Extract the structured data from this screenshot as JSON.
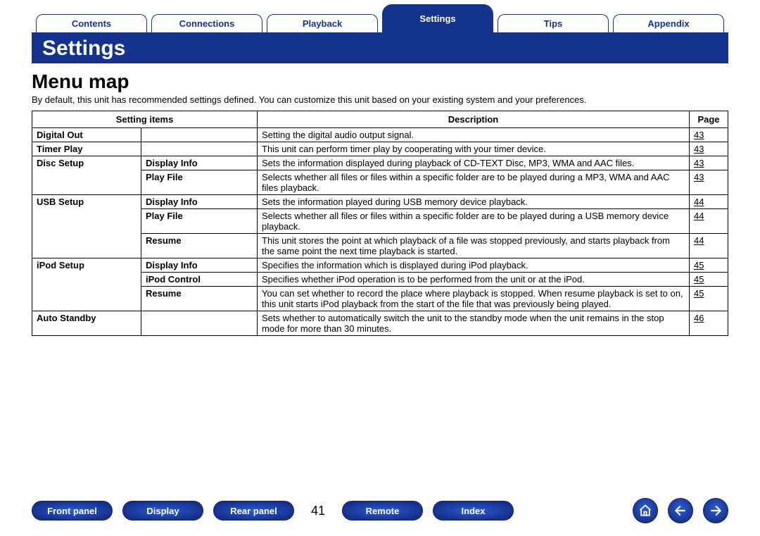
{
  "tabs": {
    "items": [
      {
        "label": "Contents",
        "active": false
      },
      {
        "label": "Connections",
        "active": false
      },
      {
        "label": "Playback",
        "active": false
      },
      {
        "label": "Settings",
        "active": true
      },
      {
        "label": "Tips",
        "active": false
      },
      {
        "label": "Appendix",
        "active": false
      }
    ]
  },
  "section_title": "Settings",
  "page_heading": "Menu map",
  "intro_text": "By default, this unit has recommended settings defined. You can customize this unit based on your existing system and your preferences.",
  "table": {
    "headers": {
      "items": "Setting items",
      "description": "Description",
      "page": "Page"
    },
    "rows": [
      {
        "item": "Digital Out",
        "sub": "",
        "desc": "Setting the digital audio output signal.",
        "page": "43",
        "newgroup": true
      },
      {
        "item": "Timer Play",
        "sub": "",
        "desc": "This unit can perform timer play by cooperating with your timer device.",
        "page": "43",
        "newgroup": true
      },
      {
        "item": "Disc Setup",
        "sub": "Display Info",
        "desc": "Sets the information displayed during playback of CD-TEXT Disc, MP3, WMA and AAC files.",
        "page": "43",
        "newgroup": true
      },
      {
        "item": "",
        "sub": "Play File",
        "desc": "Selects whether all files or files within a specific folder are to be played during a MP3, WMA and AAC files playback.",
        "page": "43",
        "newgroup": false
      },
      {
        "item": "USB Setup",
        "sub": "Display Info",
        "desc": "Sets the information played during USB memory device playback.",
        "page": "44",
        "newgroup": true
      },
      {
        "item": "",
        "sub": "Play File",
        "desc": "Selects whether all files or files within a specific folder are to be played during a USB memory device playback.",
        "page": "44",
        "newgroup": false
      },
      {
        "item": "",
        "sub": "Resume",
        "desc": "This unit stores the point at which playback of a file was stopped previously, and starts playback from the same point the next time playback is started.",
        "page": "44",
        "newgroup": false
      },
      {
        "item": "iPod Setup",
        "sub": "Display Info",
        "desc": "Specifies the information which is displayed during iPod playback.",
        "page": "45",
        "newgroup": true
      },
      {
        "item": "",
        "sub": "iPod Control",
        "desc": "Specifies whether iPod operation is to be performed from the unit or at the iPod.",
        "page": "45",
        "newgroup": false
      },
      {
        "item": "",
        "sub": "Resume",
        "desc": "You can set whether to record the place where playback is stopped. When resume playback is set to on, this unit starts iPod playback from the start of the file that was previously being played.",
        "page": "45",
        "newgroup": false
      },
      {
        "item": "Auto Standby",
        "sub": "",
        "desc": "Sets whether to automatically switch the unit to the standby mode when the unit remains in the stop mode for more than 30 minutes.",
        "page": "46",
        "newgroup": true,
        "justify": true
      }
    ]
  },
  "footer": {
    "buttons": {
      "front_panel": "Front panel",
      "display": "Display",
      "rear_panel": "Rear panel",
      "remote": "Remote",
      "index": "Index"
    },
    "page_number": "41",
    "icons": {
      "home": "home-icon",
      "prev": "arrow-left-icon",
      "next": "arrow-right-icon"
    }
  },
  "colors": {
    "brand_blue": "#13338f",
    "text": "#000000",
    "background": "#ffffff"
  }
}
